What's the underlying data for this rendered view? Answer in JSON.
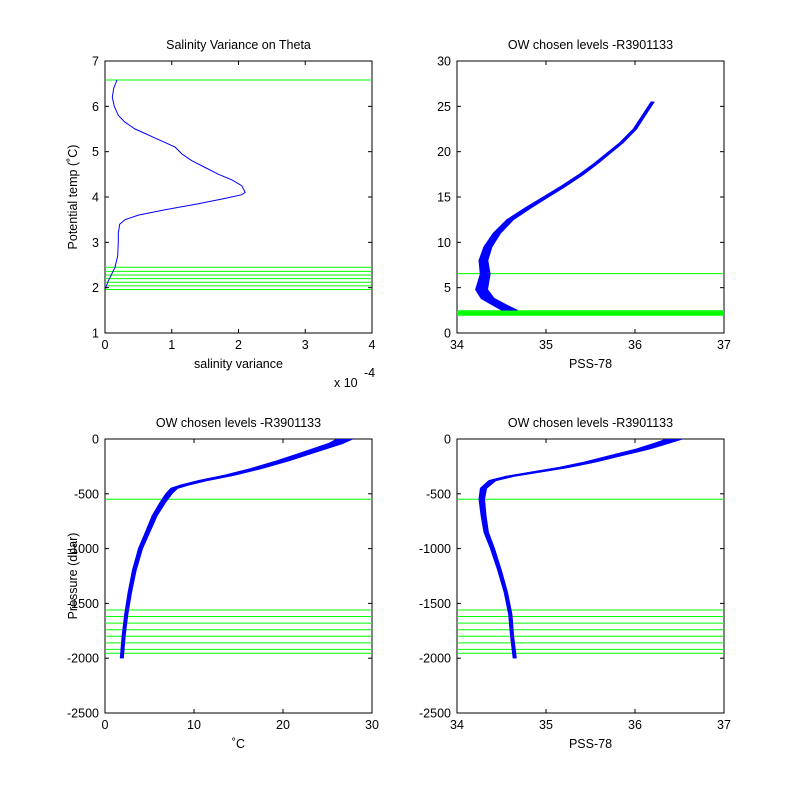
{
  "figure": {
    "background": "#ffffff",
    "line_color": "#0000ff",
    "level_color": "#00ff00"
  },
  "chart_data": [
    {
      "type": "line",
      "title": "Salinity Variance on Theta",
      "xlabel": "salinity variance",
      "ylabel": "Potential temp (˚C)",
      "x_multiplier": "x 10",
      "x_multiplier_exp": "-4",
      "xlim": [
        0,
        4
      ],
      "ylim": [
        1,
        7
      ],
      "xticks": [
        "0",
        "1",
        "2",
        "3",
        "4"
      ],
      "yticks": [
        "1",
        "2",
        "3",
        "4",
        "5",
        "6",
        "7"
      ],
      "grid": false,
      "series": [
        {
          "x": [
            0.18,
            0.13,
            0.11,
            0.14,
            0.2,
            0.3,
            0.45,
            0.6,
            0.75,
            0.9,
            1.05,
            1.15,
            1.3,
            1.5,
            1.7,
            1.9,
            2.05,
            2.1,
            2.05,
            1.8,
            1.4,
            0.9,
            0.5,
            0.3,
            0.22,
            0.2,
            0.2,
            0.19,
            0.15,
            0.05,
            0.0
          ],
          "y": [
            6.58,
            6.4,
            6.2,
            6.0,
            5.8,
            5.65,
            5.5,
            5.4,
            5.3,
            5.2,
            5.1,
            4.95,
            4.8,
            4.65,
            4.5,
            4.38,
            4.25,
            4.1,
            4.05,
            3.97,
            3.85,
            3.72,
            3.6,
            3.5,
            3.4,
            3.2,
            3.0,
            2.7,
            2.45,
            2.15,
            1.96
          ]
        }
      ],
      "hlines": [
        6.58,
        2.45,
        2.36,
        2.28,
        2.2,
        2.12,
        2.04,
        1.96
      ]
    },
    {
      "type": "line",
      "title": "OW chosen levels -R3901133",
      "xlabel": "PSS-78",
      "ylabel": "",
      "xlim": [
        34,
        37
      ],
      "ylim": [
        0,
        30
      ],
      "xticks": [
        "34",
        "35",
        "36",
        "37"
      ],
      "yticks": [
        "0",
        "5",
        "10",
        "15",
        "20",
        "25",
        "30"
      ],
      "grid": false,
      "series": [
        {
          "x": [
            34.6,
            34.5,
            34.35,
            34.28,
            34.3,
            34.32,
            34.3,
            34.35,
            34.45,
            34.6,
            34.8,
            35.0,
            35.2,
            35.4,
            35.55,
            35.7,
            35.85,
            36.0,
            36.1,
            36.2
          ],
          "y": [
            2.5,
            3.0,
            3.8,
            4.8,
            5.6,
            6.5,
            8.0,
            9.5,
            11.0,
            12.5,
            13.8,
            15.0,
            16.2,
            17.5,
            18.6,
            19.8,
            21.0,
            22.5,
            24.0,
            25.5
          ]
        }
      ],
      "hlines": [
        6.55,
        2.45,
        2.36,
        2.28,
        2.2,
        2.12,
        2.04,
        1.96
      ]
    },
    {
      "type": "line",
      "title": "OW chosen levels -R3901133",
      "xlabel": "˚C",
      "ylabel": "Pressure (dbar)",
      "xlim": [
        0,
        30
      ],
      "ylim": [
        -2500,
        0
      ],
      "xticks": [
        "0",
        "10",
        "20",
        "30"
      ],
      "yticks": [
        "-2500",
        "-2000",
        "-1500",
        "-1000",
        "-500",
        "0"
      ],
      "grid": false,
      "series": [
        {
          "x": [
            1.9,
            2.1,
            2.4,
            2.8,
            3.3,
            4.0,
            4.8,
            5.6,
            6.5,
            7.2,
            7.8,
            9.0,
            11.0,
            14.0,
            17.0,
            20.0,
            23.0,
            26.0,
            27.0
          ],
          "y": [
            -2000,
            -1800,
            -1600,
            -1400,
            -1200,
            -1000,
            -850,
            -700,
            -580,
            -500,
            -450,
            -420,
            -380,
            -330,
            -270,
            -200,
            -120,
            -40,
            0
          ]
        }
      ],
      "hlines": [
        -550,
        -1560,
        -1620,
        -1680,
        -1740,
        -1800,
        -1860,
        -1920,
        -1955
      ]
    },
    {
      "type": "line",
      "title": "OW chosen levels -R3901133",
      "xlabel": "PSS-78",
      "ylabel": "",
      "xlim": [
        34,
        37
      ],
      "ylim": [
        -2500,
        0
      ],
      "xticks": [
        "34",
        "35",
        "36",
        "37"
      ],
      "yticks": [
        "-2500",
        "-2000",
        "-1500",
        "-1000",
        "-500",
        "0"
      ],
      "grid": false,
      "series": [
        {
          "x": [
            34.65,
            34.62,
            34.6,
            34.55,
            34.48,
            34.4,
            34.33,
            34.3,
            34.28,
            34.3,
            34.4,
            34.6,
            34.9,
            35.2,
            35.5,
            35.8,
            36.1,
            36.3,
            36.45
          ],
          "y": [
            -2000,
            -1800,
            -1600,
            -1400,
            -1200,
            -1000,
            -850,
            -700,
            -550,
            -450,
            -380,
            -340,
            -300,
            -260,
            -210,
            -150,
            -90,
            -40,
            0
          ]
        }
      ],
      "hlines": [
        -550,
        -1560,
        -1620,
        -1680,
        -1740,
        -1800,
        -1860,
        -1920,
        -1955
      ]
    }
  ]
}
